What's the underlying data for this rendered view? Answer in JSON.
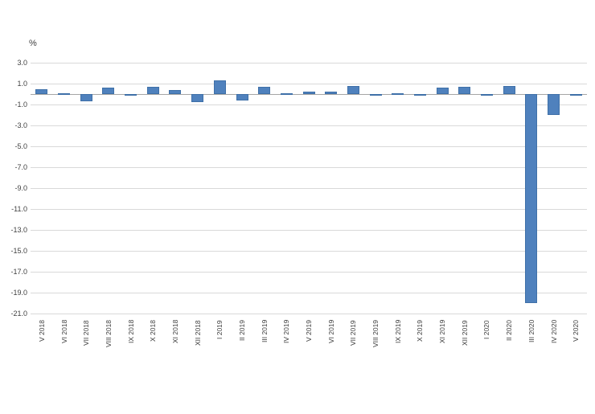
{
  "chart_data": {
    "type": "bar",
    "title": "",
    "xlabel": "",
    "ylabel": "%",
    "categories": [
      "V 2018",
      "VI 2018",
      "VII 2018",
      "VIII 2018",
      "IX 2018",
      "X 2018",
      "XI 2018",
      "XII 2018",
      "I 2019",
      "II 2019",
      "III 2019",
      "IV 2019",
      "V 2019",
      "VI 2019",
      "VII 2019",
      "VIII 2019",
      "IX 2019",
      "X 2019",
      "XI 2019",
      "XII 2019",
      "I 2020",
      "II 2020",
      "III 2020",
      "IV 2020",
      "V 2020"
    ],
    "values": [
      0.5,
      0.1,
      -0.7,
      0.6,
      0.0,
      0.7,
      0.4,
      -0.8,
      1.3,
      -0.6,
      0.7,
      0.1,
      0.2,
      0.2,
      0.8,
      -0.1,
      0.1,
      0.0,
      0.6,
      0.7,
      0.0,
      0.8,
      -20.0,
      -2.0,
      -0.1
    ],
    "yticks": [
      3.0,
      1.0,
      -1.0,
      -3.0,
      -5.0,
      -7.0,
      -9.0,
      -11.0,
      -13.0,
      -15.0,
      -17.0,
      -19.0,
      -21.0
    ],
    "ylim": [
      -21.0,
      3.0
    ],
    "grid": true,
    "legend": "none",
    "bar_color": "#4f81bd",
    "bar_border_color": "#3f70a8",
    "gridline_color": "#d9d9d9",
    "axis_line_color": "#a6a6a6",
    "text_color": "#404040"
  }
}
